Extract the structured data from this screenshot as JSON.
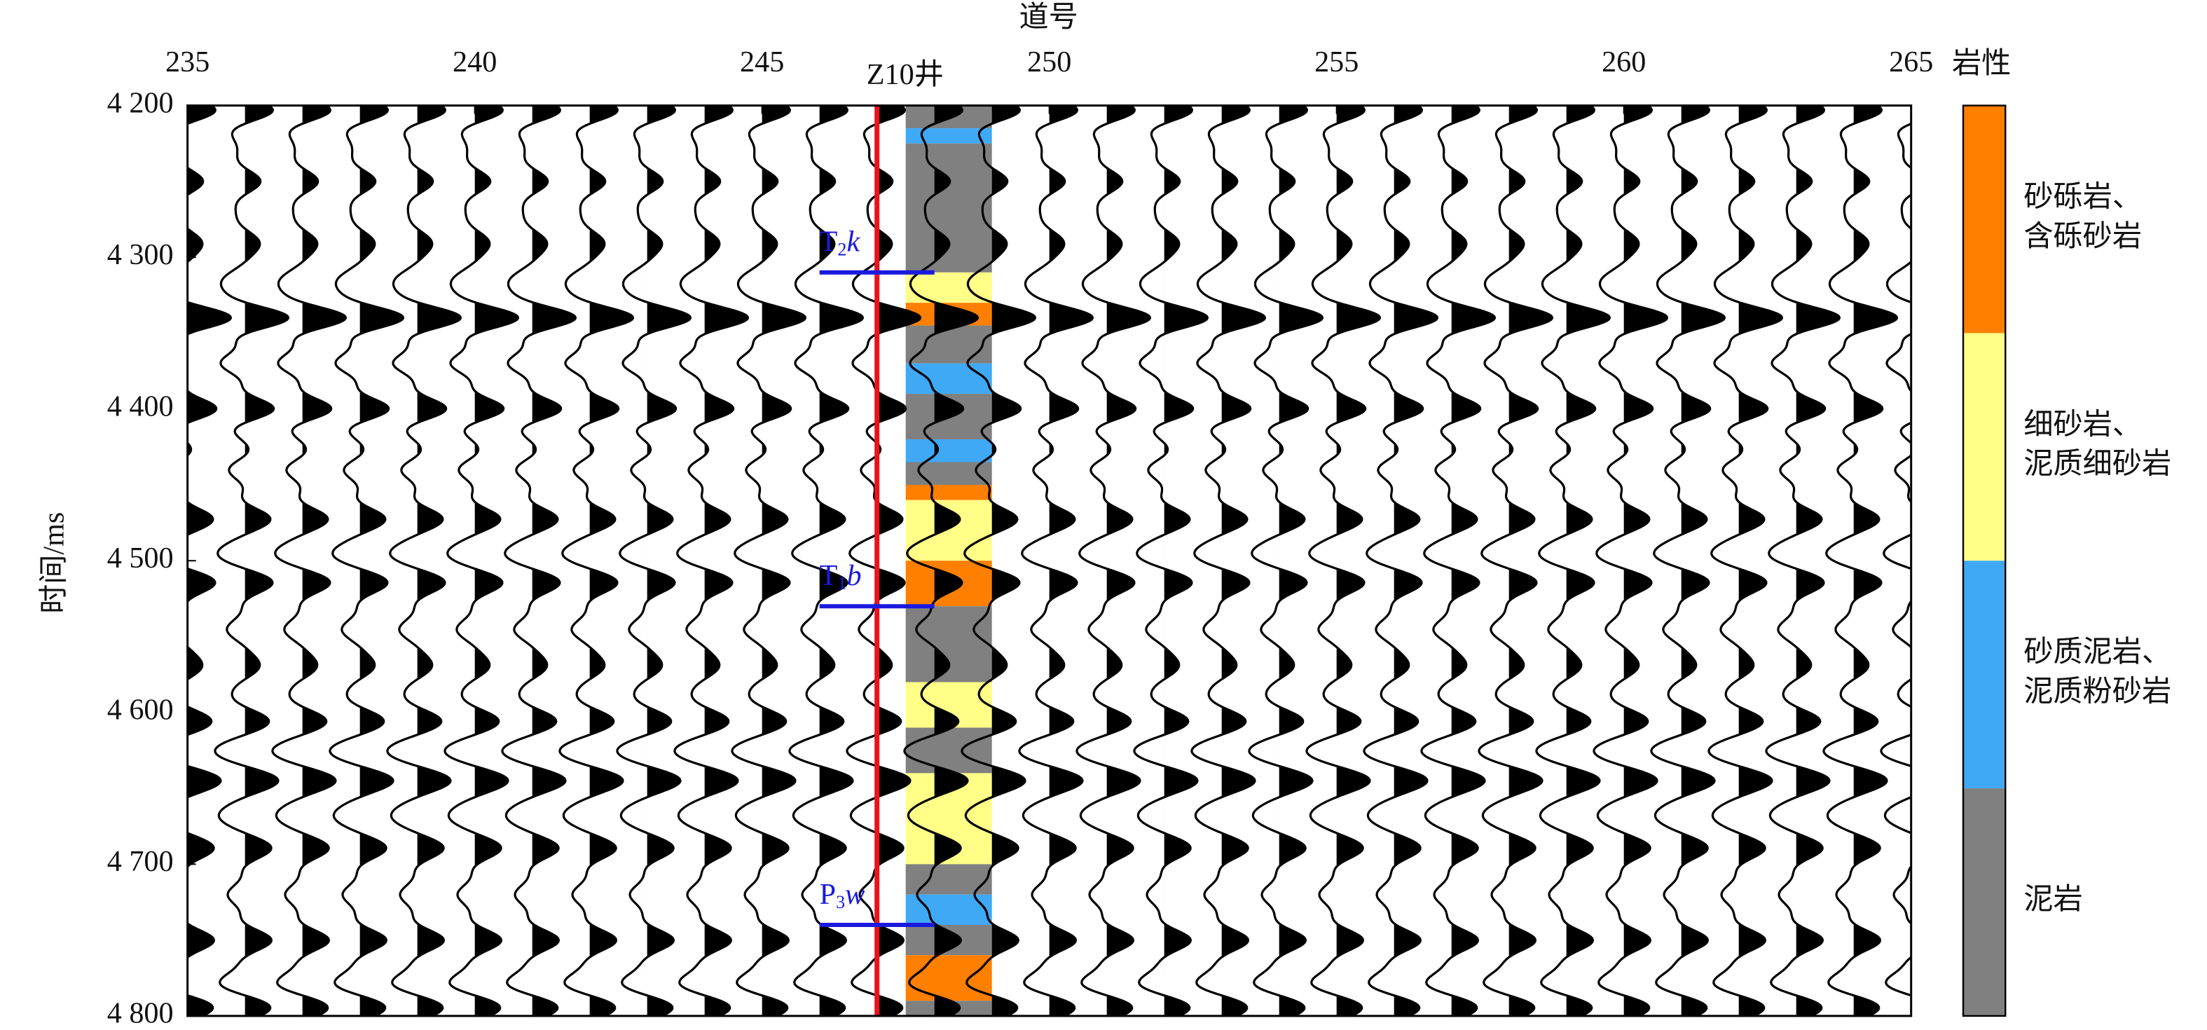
{
  "chart_data": {
    "type": "seismic",
    "x_label": "道号",
    "y_label": "时间/ms",
    "xlim": [
      235,
      265
    ],
    "ylim": [
      4200,
      4800
    ],
    "xticks": [
      235,
      240,
      245,
      250,
      255,
      260,
      265
    ],
    "yticks": [
      {
        "value": 4200,
        "label": "4 200"
      },
      {
        "value": 4300,
        "label": "4 300"
      },
      {
        "value": 4400,
        "label": "4 400"
      },
      {
        "value": 4500,
        "label": "4 500"
      },
      {
        "value": 4600,
        "label": "4 600"
      },
      {
        "value": 4700,
        "label": "4 700"
      },
      {
        "value": 4800,
        "label": "4 800"
      }
    ],
    "events": {
      "times": [
        4203,
        4250,
        4290,
        4315,
        4340,
        4370,
        4400,
        4440,
        4472,
        4495,
        4515,
        4545,
        4570,
        4605,
        4625,
        4645,
        4668,
        4690,
        4720,
        4750,
        4778,
        4795
      ],
      "amplitudes": [
        0.9,
        0.5,
        0.4,
        -0.5,
        1.3,
        -0.7,
        0.9,
        -0.5,
        0.7,
        -0.5,
        0.7,
        -0.5,
        0.4,
        0.6,
        -0.5,
        0.8,
        -0.5,
        0.7,
        -0.5,
        0.8,
        -0.5,
        0.6
      ]
    },
    "well": {
      "name": "Z10井",
      "trace": 247
    },
    "horizons": [
      {
        "name": "T",
        "subscript": "2",
        "letter": "k",
        "time": 4310
      },
      {
        "name": "T",
        "subscript": "1",
        "letter": "b",
        "time": 4530
      },
      {
        "name": "P",
        "subscript": "3",
        "letter": "w",
        "time": 4740
      }
    ],
    "lithology": [
      {
        "top": 4200,
        "base": 4215,
        "class": 3
      },
      {
        "top": 4215,
        "base": 4225,
        "class": 2
      },
      {
        "top": 4225,
        "base": 4310,
        "class": 3
      },
      {
        "top": 4310,
        "base": 4330,
        "class": 1
      },
      {
        "top": 4330,
        "base": 4345,
        "class": 0
      },
      {
        "top": 4345,
        "base": 4370,
        "class": 3
      },
      {
        "top": 4370,
        "base": 4390,
        "class": 2
      },
      {
        "top": 4390,
        "base": 4420,
        "class": 3
      },
      {
        "top": 4420,
        "base": 4435,
        "class": 2
      },
      {
        "top": 4435,
        "base": 4450,
        "class": 3
      },
      {
        "top": 4450,
        "base": 4460,
        "class": 0
      },
      {
        "top": 4460,
        "base": 4500,
        "class": 1
      },
      {
        "top": 4500,
        "base": 4530,
        "class": 0
      },
      {
        "top": 4530,
        "base": 4580,
        "class": 3
      },
      {
        "top": 4580,
        "base": 4610,
        "class": 1
      },
      {
        "top": 4610,
        "base": 4640,
        "class": 3
      },
      {
        "top": 4640,
        "base": 4700,
        "class": 1
      },
      {
        "top": 4700,
        "base": 4720,
        "class": 3
      },
      {
        "top": 4720,
        "base": 4740,
        "class": 2
      },
      {
        "top": 4740,
        "base": 4760,
        "class": 3
      },
      {
        "top": 4760,
        "base": 4790,
        "class": 0
      },
      {
        "top": 4790,
        "base": 4800,
        "class": 3
      }
    ],
    "legend": {
      "title": "岩性",
      "items": [
        {
          "label": [
            "砂砾岩、",
            "含砾砂岩"
          ],
          "color": "#ff7f00"
        },
        {
          "label": [
            "细砂岩、",
            "泥质细砂岩"
          ],
          "color": "#ffff88"
        },
        {
          "label": [
            "砂质泥岩、",
            "泥质粉砂岩"
          ],
          "color": "#3fa9f5"
        },
        {
          "label": [
            "泥岩"
          ],
          "color": "#808080"
        }
      ]
    }
  }
}
